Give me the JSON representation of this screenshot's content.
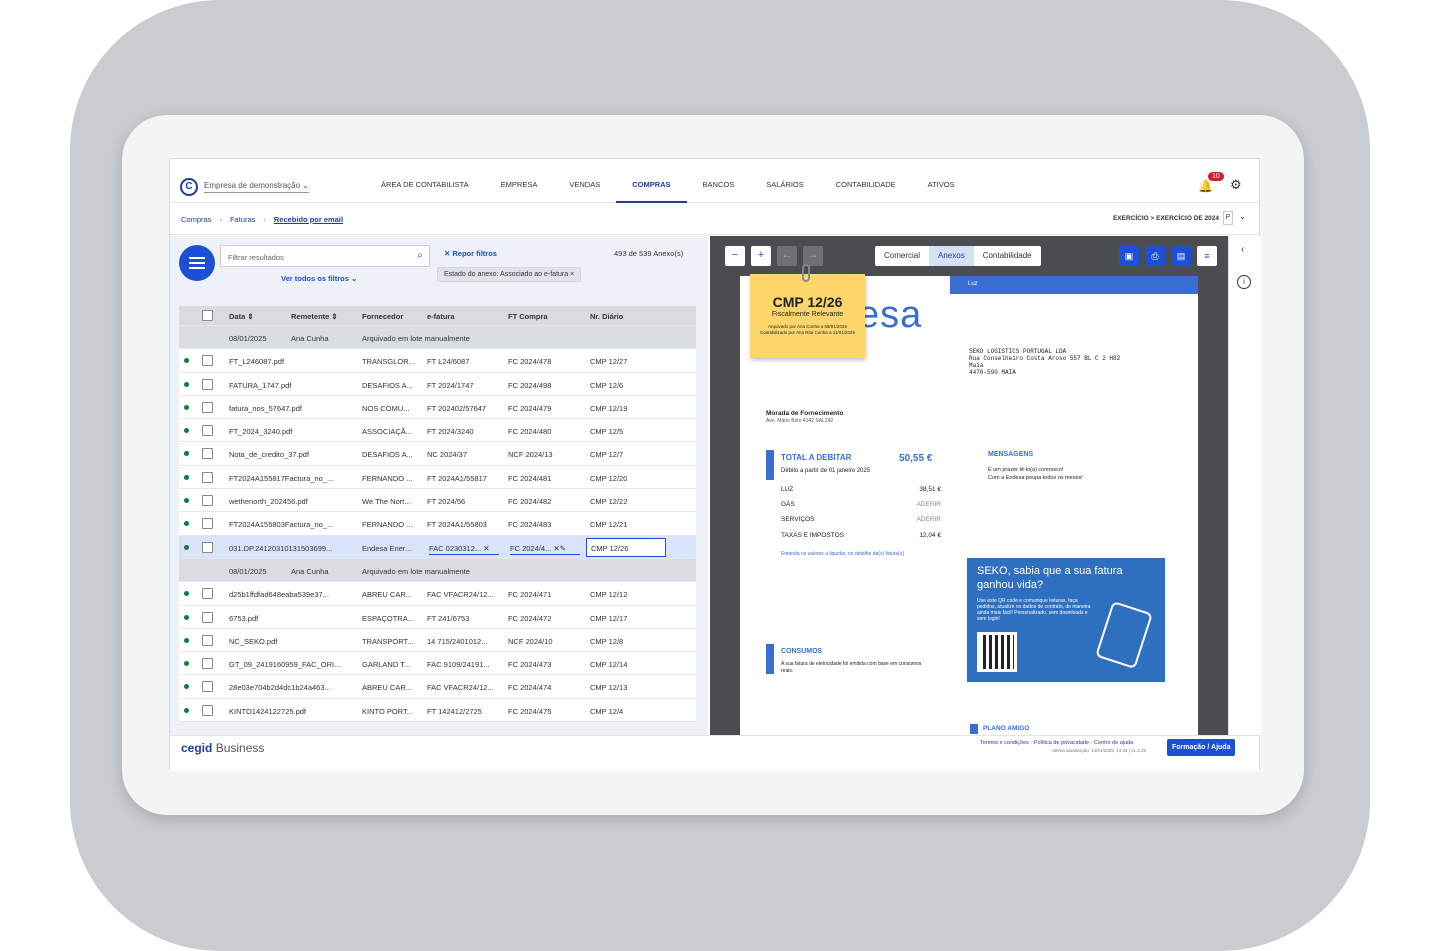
{
  "topbar": {
    "company": "Empresa de demonstração",
    "nav": [
      "ÁREA DE CONTABILISTA",
      "EMPRESA",
      "VENDAS",
      "COMPRAS",
      "BANCOS",
      "SALÁRIOS",
      "CONTABILIDADE",
      "ATIVOS"
    ],
    "active_nav": "COMPRAS",
    "notifications": "10"
  },
  "breadcrumb": {
    "items": [
      "Compras",
      "Faturas",
      "Recebido por email"
    ],
    "exercicio": "EXERCÍCIO > EXERCÍCIO DE 2024",
    "p": "P"
  },
  "filters": {
    "search_placeholder": "Filtrar resultados",
    "see_all": "Ver todos os filtros",
    "reset": "Repor filtros",
    "count": "493 de 539 Anexo(s)",
    "chip": "Estado do anexo: Associado ao e-fatura"
  },
  "table": {
    "headers": [
      "Data",
      "Remetente",
      "Fornecedor",
      "e-fatura",
      "FT Compra",
      "Nr. Diário"
    ],
    "groups": [
      {
        "date": "08/01/2025",
        "sender": "Ana Cunha",
        "note": "Arquivado em lote manualmente",
        "rows": [
          [
            "FT_L246087.pdf",
            "TRANSGLOR...",
            "FT L24/6087",
            "FC 2024/478",
            "CMP 12/27"
          ],
          [
            "FATURA_1747.pdf",
            "DESAFIOS A...",
            "FT 2024/1747",
            "FC 2024/498",
            "CMP 12/6"
          ],
          [
            "fatura_nos_57647.pdf",
            "NOS COMU...",
            "FT 202402/57647",
            "FC 2024/479",
            "CMP 12/19"
          ],
          [
            "FT_2024_3240.pdf",
            "ASSOCIAÇÃ...",
            "FT 2024/3240",
            "FC 2024/480",
            "CMP 12/5"
          ],
          [
            "Nota_de_credito_37.pdf",
            "DESAFIOS A...",
            "NC 2024/37",
            "NCF 2024/13",
            "CMP 12/7"
          ],
          [
            "FT2024A155817Factura_no_...",
            "FERNANDO ...",
            "FT 2024A1/55817",
            "FC 2024/481",
            "CMP 12/20"
          ],
          [
            "wethenorth_202456.pdf",
            "We The Nort...",
            "FT 2024/56",
            "FC 2024/482",
            "CMP 12/22"
          ],
          [
            "FT2024A155803Factura_no_...",
            "FERNANDO ...",
            "FT 2024A1/55803",
            "FC 2024/483",
            "CMP 12/21"
          ],
          [
            "031.DP.24120310131503699...",
            "Endesa Ener...",
            "FAC 0230312...",
            "FC 2024/4...",
            "CMP 12/26"
          ]
        ]
      },
      {
        "date": "08/01/2025",
        "sender": "Ana Cunha",
        "note": "Arquivado em lote manualmente",
        "rows": [
          [
            "d25b1ffdfad648eaba539e37...",
            "ABREU CAR...",
            "FAC VFACR24/12...",
            "FC 2024/471",
            "CMP 12/12"
          ],
          [
            "6753.pdf",
            "ESPAÇOTRA...",
            "FT 241/6753",
            "FC 2024/472",
            "CMP 12/17"
          ],
          [
            "NC_SEKO.pdf",
            "TRANSPORT...",
            "14 715/2401012...",
            "NCF 2024/10",
            "CMP 12/8"
          ],
          [
            "GT_09_2419160959_FAC_ORI...",
            "GARLAND T...",
            "FAC 9109/24191...",
            "FC 2024/473",
            "CMP 12/14"
          ],
          [
            "28e03e704b2d4dc1b24a463...",
            "ABREU CAR...",
            "FAC VFACR24/12...",
            "FC 2024/474",
            "CMP 12/13"
          ],
          [
            "KINTO1424122725.pdf",
            "KINTO PORT...",
            "FT 142412/2725",
            "FC 2024/475",
            "CMP 12/4"
          ]
        ]
      }
    ]
  },
  "viewer": {
    "tabs": [
      "Comercial",
      "Anexos",
      "Contabilidade"
    ],
    "active_tab": "Anexos",
    "sticky": {
      "title": "CMP 12/26",
      "subtitle": "Fiscalmente Relevante",
      "line1": "Arquivado por Ana Cunha a 08/01/2025",
      "line2": "Contabilizado por Ana Rita Cunha a 11/01/2025"
    },
    "doc": {
      "header_luz": "Luz",
      "logo": "esa",
      "address": [
        "SEKO LOGISTICS PORTUGAL LDA",
        "Rua Conselheiro Costa Aroso 557 BL C 2 H82",
        "Maia",
        "4470-590 MAIA"
      ],
      "morada_title": "Morada de Fornecimento",
      "morada_text": "Avn. Mário Brito 4142 SAL242",
      "total_title": "TOTAL A DEBITAR",
      "total_value": "50,55 €",
      "debit_from": "Débito a partir de 01 janeiro 2025",
      "lines": [
        {
          "label": "LUZ",
          "value": "38,51 €"
        },
        {
          "label": "GÁS",
          "value": "ADERIR"
        },
        {
          "label": "SERVIÇOS",
          "value": "ADERIR"
        },
        {
          "label": "TAXAS E IMPOSTOS",
          "value": "12,04 €"
        }
      ],
      "entenda": "Entenda os valores a liquidar, no detalhe da(s) fatura(s)",
      "mensagens": "MENSAGENS",
      "mens_text": [
        "É um prazer tê-lo(a) connosco!",
        "Com a Endesa poupa todos os meses!"
      ],
      "seko_title": "SEKO, sabia que a sua fatura ganhou vida?",
      "seko_text": "Use este QR code e comunique leituras, faça pedidos, atualize os dados de contrato, de maneira ainda mais fácil! Personalizado, sem downloads e sem login!",
      "consumos": "CONSUMOS",
      "cons_text": "A sua fatura de eletricidade foi emitida com base em consumos reais.",
      "plano": "PLANO AMIGO"
    }
  },
  "footer": {
    "brand_a": "cegid",
    "brand_b": "Business",
    "links": "Termos e condições · Política de privacidade · Centro de ajuda",
    "updated": "Última atualização: 14/01/2025, 14:34 | v1.3.29",
    "help": "Formação / Ajuda"
  },
  "colors": {
    "accent": "#1a4fd6",
    "brand": "#1f3e9a",
    "status_dot": "#0d7a47",
    "sticky": "#fcd66a"
  }
}
